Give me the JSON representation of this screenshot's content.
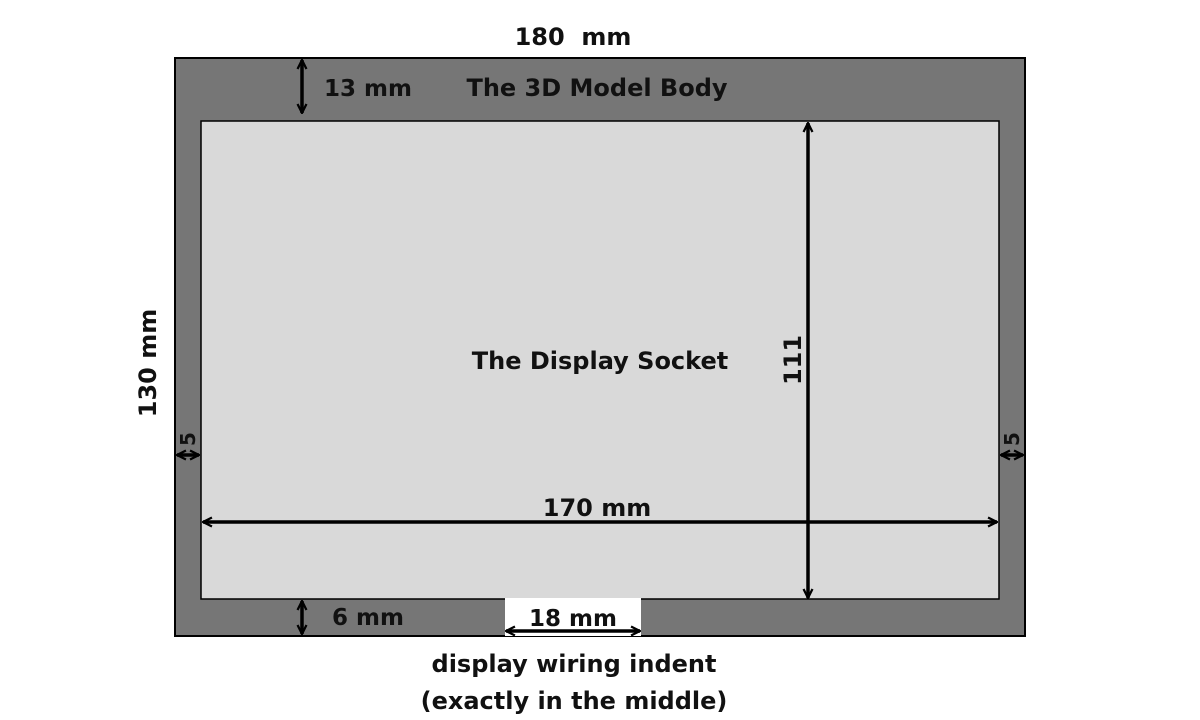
{
  "colors": {
    "body": "#767676",
    "socket": "#d9d9d9",
    "outline": "#000000",
    "indent": "#ffffff"
  },
  "labels": {
    "body_width": "180  mm",
    "body_height": "130 mm",
    "top_margin": "13 mm",
    "body_title": "The 3D Model Body",
    "socket_title": "The Display Socket",
    "socket_height": "111",
    "side_margin_left": "5",
    "side_margin_right": "5",
    "socket_width": "170 mm",
    "bottom_margin": "6 mm",
    "indent_width": "18 mm",
    "indent_caption_line1": "display wiring indent",
    "indent_caption_line2": "(exactly in the middle)"
  }
}
